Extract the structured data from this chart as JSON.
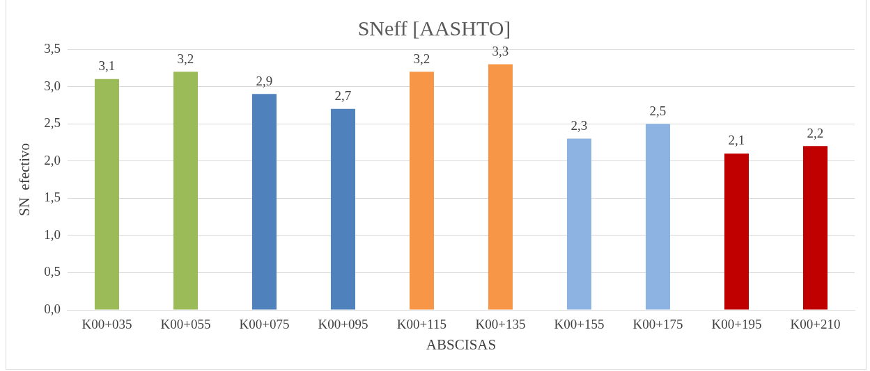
{
  "chart_data": {
    "type": "bar",
    "title": "SNeff [AASHTO]",
    "xlabel": "ABSCISAS",
    "ylabel": "SN  efectivo",
    "categories": [
      "K00+035",
      "K00+055",
      "K00+075",
      "K00+095",
      "K00+115",
      "K00+135",
      "K00+155",
      "K00+175",
      "K00+195",
      "K00+210"
    ],
    "values": [
      3.1,
      3.2,
      2.9,
      2.7,
      3.2,
      3.3,
      2.3,
      2.5,
      2.1,
      2.2
    ],
    "value_labels": [
      "3,1",
      "3,2",
      "2,9",
      "2,7",
      "3,2",
      "3,3",
      "2,3",
      "2,5",
      "2,1",
      "2,2"
    ],
    "colors": [
      "#9bbb59",
      "#9bbb59",
      "#4f81bd",
      "#4f81bd",
      "#f79646",
      "#f79646",
      "#8db3e2",
      "#8db3e2",
      "#c00000",
      "#c00000"
    ],
    "ylim": [
      0,
      3.5
    ],
    "yticks": [
      {
        "value": 0,
        "label": "0,0"
      },
      {
        "value": 0.5,
        "label": "0,5"
      },
      {
        "value": 1,
        "label": "1,0"
      },
      {
        "value": 1.5,
        "label": "1,5"
      },
      {
        "value": 2,
        "label": "2,0"
      },
      {
        "value": 2.5,
        "label": "2,5"
      },
      {
        "value": 3,
        "label": "3,0"
      },
      {
        "value": 3.5,
        "label": "3,5"
      }
    ],
    "grid": "y",
    "legend": false
  }
}
